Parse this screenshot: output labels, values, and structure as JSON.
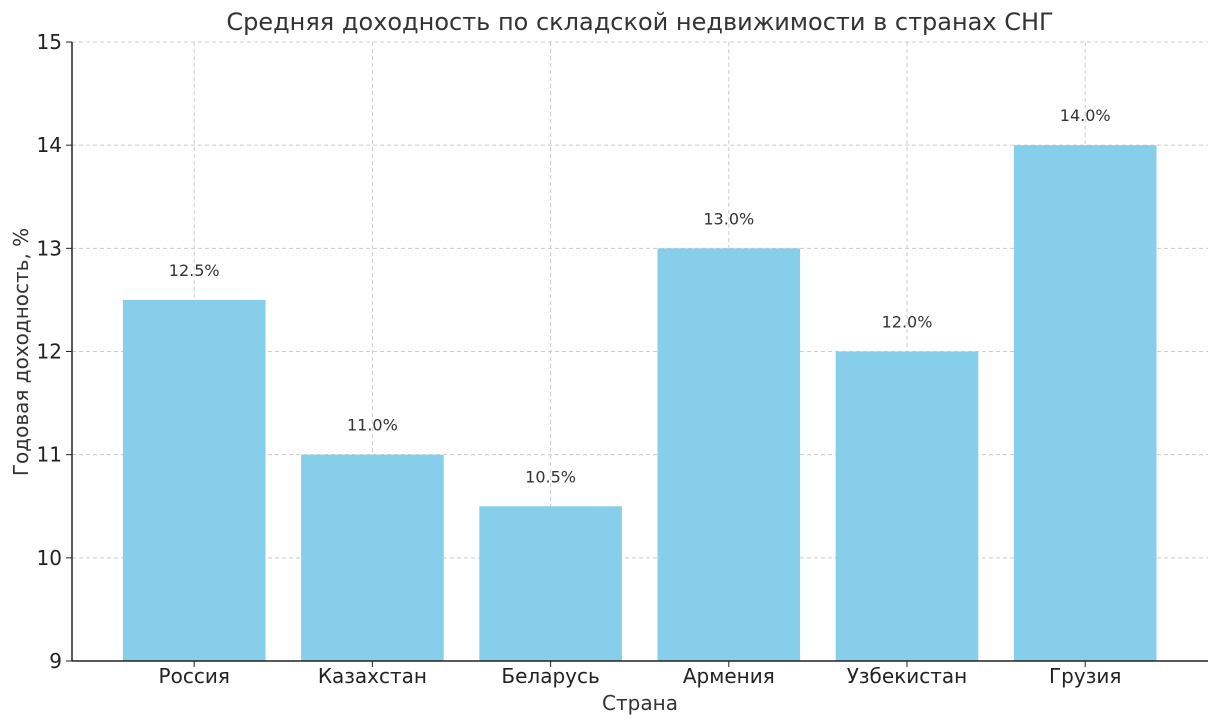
{
  "chart_data": {
    "type": "bar",
    "title": "Средняя доходность по складской недвижимости в странах СНГ",
    "xlabel": "Страна",
    "ylabel": "Годовая доходность, %",
    "categories": [
      "Россия",
      "Казахстан",
      "Беларусь",
      "Армения",
      "Узбекистан",
      "Грузия"
    ],
    "values": [
      12.5,
      11.0,
      10.5,
      13.0,
      12.0,
      14.0
    ],
    "data_labels": [
      "12.5%",
      "11.0%",
      "10.5%",
      "13.0%",
      "12.0%",
      "14.0%"
    ],
    "ylim": [
      9,
      15
    ],
    "yticks": [
      9,
      10,
      11,
      12,
      13,
      14,
      15
    ],
    "grid": true,
    "bar_color": "#87CEEB"
  }
}
